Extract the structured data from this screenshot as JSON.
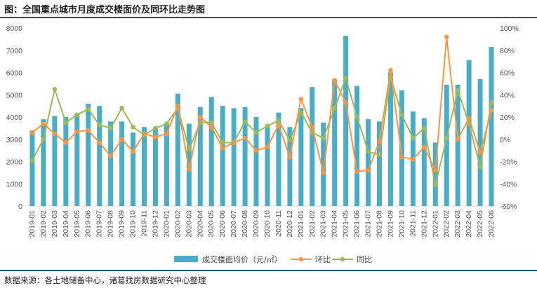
{
  "header": {
    "title": "图：全国重点城市月度成交楼面价及同环比走势图"
  },
  "footer": {
    "source": "数据来源：各土地储备中心，诸葛找房数据研究中心整理"
  },
  "colors": {
    "bar": "#4bacc6",
    "mom": "#f79646",
    "yoy": "#9bbb59",
    "axis": "#d9d9d9",
    "text": "#595959",
    "rule": "#2d4f8f"
  },
  "chart_data": {
    "type": "bar",
    "title": "全国重点城市月度成交楼面价及同环比走势图",
    "categories": [
      "2019-01",
      "2019-02",
      "2019-03",
      "2019-04",
      "2019-05",
      "2019-06",
      "2019-07",
      "2019-08",
      "2019-09",
      "2019-10",
      "2019-11",
      "2019-12",
      "2020-01",
      "2020-02",
      "2020-03",
      "2020-04",
      "2020-05",
      "2020-06",
      "2020-07",
      "2020-08",
      "2020-09",
      "2020-10",
      "2020-11",
      "2020-12",
      "2021-01",
      "2021-02",
      "2021-03",
      "2021-04",
      "2021-05",
      "2021-06",
      "2021-07",
      "2021-08",
      "2021-09",
      "2021-10",
      "2021-11",
      "2021-12",
      "2022-01",
      "2022-02",
      "2022-03",
      "2022-04",
      "2022-05",
      "2022-06"
    ],
    "series": [
      {
        "name": "成交楼面均价（元/㎡）",
        "type": "bar",
        "axis": "left",
        "values": [
          3400,
          3900,
          4050,
          4000,
          4150,
          4600,
          4500,
          3800,
          3800,
          3300,
          3550,
          3500,
          3700,
          5050,
          3700,
          4450,
          4900,
          4500,
          4400,
          4450,
          4000,
          3650,
          4200,
          3550,
          4400,
          5350,
          3750,
          5700,
          7650,
          5400,
          3900,
          3800,
          6000,
          5200,
          4250,
          3950,
          2850,
          5450,
          5450,
          6550,
          5700,
          7150
        ]
      },
      {
        "name": "环比",
        "type": "line",
        "axis": "right",
        "values": [
          6,
          14,
          5,
          -3,
          7,
          8,
          -3,
          -15,
          0,
          -11,
          5,
          2,
          5,
          30,
          -27,
          20,
          11,
          -8,
          -3,
          1,
          -10,
          -7,
          13,
          -16,
          36,
          11,
          -30,
          53,
          33,
          -29,
          -28,
          -2,
          62,
          -16,
          -18,
          -7,
          -28,
          92,
          0,
          19,
          -12,
          26
        ]
      },
      {
        "name": "同比",
        "type": "line",
        "axis": "right",
        "values": [
          -19,
          0,
          45,
          15,
          22,
          27,
          13,
          10,
          28,
          11,
          4,
          10,
          14,
          28,
          -9,
          15,
          15,
          -3,
          -3,
          16,
          6,
          12,
          17,
          -1,
          24,
          6,
          1,
          28,
          55,
          20,
          -11,
          -14,
          56,
          22,
          1,
          10,
          -41,
          1,
          44,
          14,
          -25,
          33
        ]
      }
    ],
    "y_left": {
      "min": 0,
      "max": 8000,
      "ticks": [
        0,
        1000,
        2000,
        3000,
        4000,
        5000,
        6000,
        7000,
        8000
      ]
    },
    "y_right": {
      "min": -60,
      "max": 100,
      "ticks": [
        "-60%",
        "-40%",
        "-20%",
        "0%",
        "20%",
        "40%",
        "60%",
        "80%",
        "100%"
      ]
    },
    "legend": {
      "position": "bottom",
      "entries": [
        "成交楼面均价（元/㎡）",
        "环比",
        "同比"
      ]
    }
  }
}
